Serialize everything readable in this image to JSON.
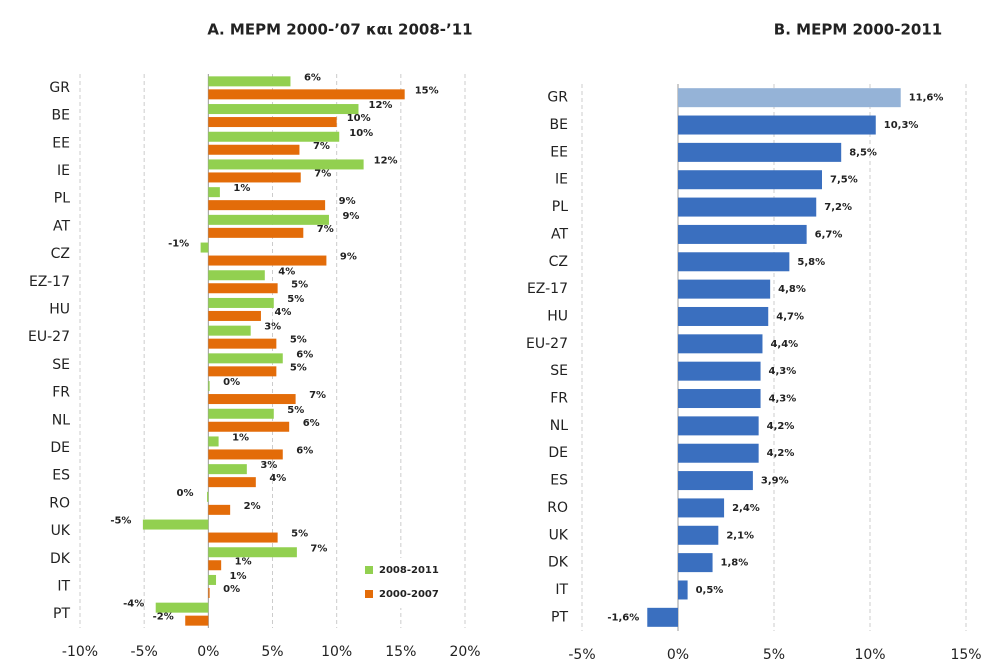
{
  "chart_data": [
    {
      "type": "bar",
      "orientation": "horizontal",
      "title": "Α. ΜΕΡΜ 2000-’07 και 2008-’11",
      "categories": [
        "GR",
        "BE",
        "EE",
        "IE",
        "PL",
        "AT",
        "CZ",
        "EZ-17",
        "HU",
        "EU-27",
        "SE",
        "FR",
        "NL",
        "DE",
        "ES",
        "RO",
        "UK",
        "DK",
        "IT",
        "PT"
      ],
      "series": [
        {
          "name": "2008-2011",
          "color": "#92d050",
          "values": [
            6.4,
            11.7,
            10.2,
            12.1,
            0.9,
            9.4,
            -0.6,
            4.4,
            5.1,
            3.3,
            5.8,
            0.1,
            5.1,
            0.8,
            3.0,
            -0.1,
            -5.1,
            6.9,
            0.6,
            -4.1
          ],
          "value_labels": [
            "6%",
            "12%",
            "10%",
            "12%",
            "1%",
            "9%",
            "-1%",
            "4%",
            "5%",
            "3%",
            "6%",
            "0%",
            "5%",
            "1%",
            "3%",
            "0%",
            "-5%",
            "7%",
            "1%",
            "-4%"
          ]
        },
        {
          "name": "2000-2007",
          "color": "#e36c09",
          "values": [
            15.3,
            10.0,
            7.1,
            7.2,
            9.1,
            7.4,
            9.2,
            5.4,
            4.1,
            5.3,
            5.3,
            6.8,
            6.3,
            5.8,
            3.7,
            1.7,
            5.4,
            1.0,
            0.1,
            -1.8
          ],
          "value_labels": [
            "15%",
            "10%",
            "7%",
            "7%",
            "9%",
            "7%",
            "9%",
            "5%",
            "4%",
            "5%",
            "5%",
            "7%",
            "6%",
            "6%",
            "4%",
            "2%",
            "5%",
            "1%",
            "0%",
            "-2%"
          ]
        }
      ],
      "xlim": [
        -10,
        20
      ],
      "xticks": [
        {
          "value": -10,
          "label": "-10%"
        },
        {
          "value": -5,
          "label": "-5%"
        },
        {
          "value": 0,
          "label": "0%"
        },
        {
          "value": 5,
          "label": "5%"
        },
        {
          "value": 10,
          "label": "10%"
        },
        {
          "value": 15,
          "label": "15%"
        },
        {
          "value": 20,
          "label": "20%"
        }
      ],
      "grid": true,
      "legend": "lower right"
    },
    {
      "type": "bar",
      "orientation": "horizontal",
      "title": "Β. ΜΕΡΜ 2000-2011",
      "categories": [
        "GR",
        "BE",
        "EE",
        "IE",
        "PL",
        "AT",
        "CZ",
        "EZ-17",
        "HU",
        "EU-27",
        "SE",
        "FR",
        "NL",
        "DE",
        "ES",
        "RO",
        "UK",
        "DK",
        "IT",
        "PT"
      ],
      "values": [
        11.6,
        10.3,
        8.5,
        7.5,
        7.2,
        6.7,
        5.8,
        4.8,
        4.7,
        4.4,
        4.3,
        4.3,
        4.2,
        4.2,
        3.9,
        2.4,
        2.1,
        1.8,
        0.5,
        -1.6
      ],
      "value_labels": [
        "11,6%",
        "10,3%",
        "8,5%",
        "7,5%",
        "7,2%",
        "6,7%",
        "5,8%",
        "4,8%",
        "4,7%",
        "4,4%",
        "4,3%",
        "4,3%",
        "4,2%",
        "4,2%",
        "3,9%",
        "2,4%",
        "2,1%",
        "1,8%",
        "0,5%",
        "-1,6%"
      ],
      "colors": [
        "#95b3d7",
        "#3a6fbf",
        "#3a6fbf",
        "#3a6fbf",
        "#3a6fbf",
        "#3a6fbf",
        "#3a6fbf",
        "#3a6fbf",
        "#3a6fbf",
        "#3a6fbf",
        "#3a6fbf",
        "#3a6fbf",
        "#3a6fbf",
        "#3a6fbf",
        "#3a6fbf",
        "#3a6fbf",
        "#3a6fbf",
        "#3a6fbf",
        "#3a6fbf",
        "#3a6fbf"
      ],
      "xlim": [
        -5,
        15
      ],
      "xticks": [
        {
          "value": -5,
          "label": "-5%"
        },
        {
          "value": 0,
          "label": "0%"
        },
        {
          "value": 5,
          "label": "5%"
        },
        {
          "value": 10,
          "label": "10%"
        },
        {
          "value": 15,
          "label": "15%"
        }
      ],
      "grid": true
    }
  ]
}
